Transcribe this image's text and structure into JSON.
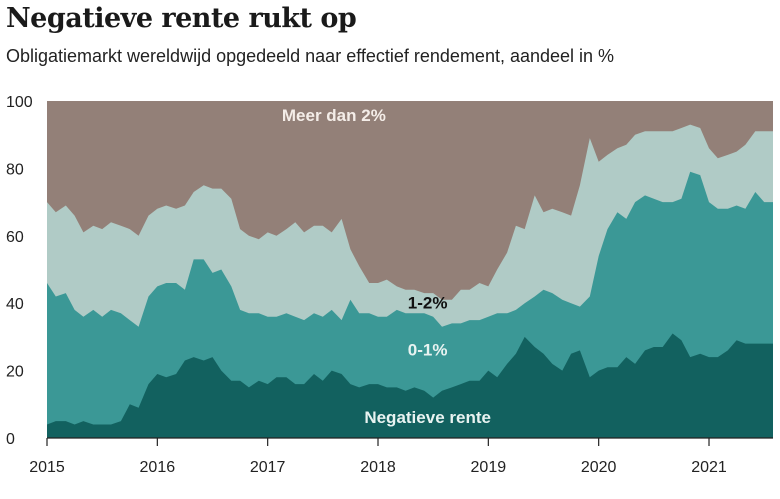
{
  "chart_data": {
    "type": "area",
    "title": "Negatieve rente rukt op",
    "subtitle": "Obligatiemarkt wereldwijd opgedeeld naar effectief rendement, aandeel in %",
    "ylim": [
      0,
      100
    ],
    "xlim": [
      2015.0,
      2021.58
    ],
    "yticks": [
      0,
      20,
      40,
      60,
      80,
      100
    ],
    "xticks": [
      "2015",
      "2016",
      "2017",
      "2018",
      "2019",
      "2020",
      "2021"
    ],
    "stacked": true,
    "series_colors": [
      "#12615f",
      "#3b9896",
      "#b0cbc6",
      "#938078"
    ],
    "series_labels": [
      "Negatieve rente",
      "0-1%",
      "1-2%",
      "Meer dan 2%"
    ],
    "x": [
      2015.0,
      2015.08,
      2015.17,
      2015.25,
      2015.33,
      2015.42,
      2015.5,
      2015.58,
      2015.67,
      2015.75,
      2015.83,
      2015.92,
      2016.0,
      2016.08,
      2016.17,
      2016.25,
      2016.33,
      2016.42,
      2016.5,
      2016.58,
      2016.67,
      2016.75,
      2016.83,
      2016.92,
      2017.0,
      2017.08,
      2017.17,
      2017.25,
      2017.33,
      2017.42,
      2017.5,
      2017.58,
      2017.67,
      2017.75,
      2017.83,
      2017.92,
      2018.0,
      2018.08,
      2018.17,
      2018.25,
      2018.33,
      2018.42,
      2018.5,
      2018.58,
      2018.67,
      2018.75,
      2018.83,
      2018.92,
      2019.0,
      2019.08,
      2019.17,
      2019.25,
      2019.33,
      2019.42,
      2019.5,
      2019.58,
      2019.67,
      2019.75,
      2019.83,
      2019.92,
      2020.0,
      2020.08,
      2020.17,
      2020.25,
      2020.33,
      2020.42,
      2020.5,
      2020.58,
      2020.67,
      2020.75,
      2020.83,
      2020.92,
      2021.0,
      2021.08,
      2021.17,
      2021.25,
      2021.33,
      2021.42,
      2021.5,
      2021.58
    ],
    "series": [
      {
        "name": "Negatieve rente",
        "cumulative": [
          4,
          5,
          5,
          4,
          5,
          4,
          4,
          4,
          5,
          10,
          9,
          16,
          19,
          18,
          19,
          23,
          24,
          23,
          24,
          20,
          17,
          17,
          15,
          17,
          16,
          18,
          18,
          16,
          16,
          19,
          17,
          20,
          19,
          16,
          15,
          16,
          16,
          15,
          15,
          14,
          15,
          14,
          12,
          14,
          15,
          16,
          17,
          17,
          20,
          18,
          22,
          25,
          30,
          27,
          25,
          22,
          20,
          25,
          26,
          18,
          20,
          21,
          21,
          24,
          22,
          26,
          27,
          27,
          31,
          29,
          24,
          25,
          24,
          24,
          26,
          29,
          28,
          28,
          28,
          28
        ]
      },
      {
        "name": "0-1%",
        "cumulative": [
          46,
          42,
          43,
          38,
          36,
          38,
          36,
          38,
          37,
          35,
          33,
          42,
          45,
          46,
          46,
          44,
          53,
          53,
          49,
          50,
          45,
          38,
          37,
          37,
          36,
          36,
          37,
          36,
          35,
          37,
          36,
          38,
          35,
          41,
          37,
          37,
          36,
          36,
          38,
          37,
          37,
          37,
          36,
          33,
          34,
          34,
          35,
          35,
          36,
          37,
          37,
          38,
          40,
          42,
          44,
          43,
          41,
          40,
          39,
          42,
          54,
          62,
          67,
          65,
          70,
          72,
          71,
          70,
          70,
          71,
          79,
          78,
          70,
          68,
          68,
          69,
          68,
          73,
          70,
          70
        ]
      },
      {
        "name": "1-2%",
        "cumulative": [
          70,
          67,
          69,
          66,
          61,
          63,
          62,
          64,
          63,
          62,
          60,
          66,
          68,
          69,
          68,
          69,
          73,
          75,
          74,
          74,
          71,
          62,
          60,
          59,
          61,
          60,
          62,
          64,
          61,
          63,
          63,
          61,
          65,
          56,
          51,
          46,
          46,
          47,
          45,
          44,
          44,
          43,
          43,
          41,
          41,
          44,
          44,
          46,
          45,
          50,
          55,
          63,
          62,
          72,
          67,
          68,
          67,
          66,
          75,
          89,
          82,
          84,
          86,
          87,
          90,
          91,
          91,
          91,
          91,
          92,
          93,
          92,
          86,
          83,
          84,
          85,
          87,
          91,
          91,
          91
        ]
      }
    ]
  }
}
